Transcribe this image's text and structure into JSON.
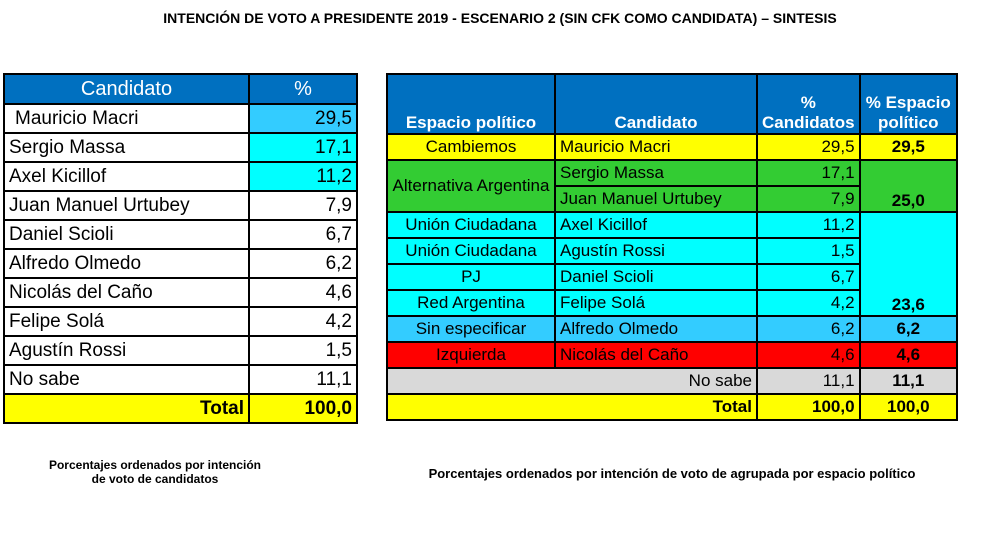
{
  "title": "INTENCIÓN DE VOTO A PRESIDENTE 2019 - ESCENARIO 2 (SIN CFK COMO CANDIDATA) – SINTESIS",
  "left": {
    "headers": [
      "Candidato",
      "%"
    ],
    "rows": [
      [
        "Mauricio Macri",
        "29,5"
      ],
      [
        "Sergio Massa",
        "17,1"
      ],
      [
        "Axel Kicillof",
        "11,2"
      ],
      [
        "Juan Manuel Urtubey",
        "7,9"
      ],
      [
        "Daniel Scioli",
        "6,7"
      ],
      [
        "Alfredo Olmedo",
        "6,2"
      ],
      [
        "Nicolás del Caño",
        "4,6"
      ],
      [
        "Felipe Solá",
        "4,2"
      ],
      [
        "Agustín Rossi",
        "1,5"
      ],
      [
        "No sabe",
        "11,1"
      ]
    ],
    "total": [
      "Total",
      "100,0"
    ],
    "note": "Porcentajes ordenados por intención de voto de candidatos"
  },
  "right": {
    "headers": [
      "Espacio político",
      "Candidato",
      "% Candidatos",
      "% Espacio político"
    ],
    "rows": [
      {
        "espacio": "Cambiemos",
        "candidato": "Mauricio Macri",
        "pct": "29,5",
        "espacio_pct": "29,5"
      },
      {
        "espacio": "Alternativa Argentina",
        "candidato": "Sergio Massa",
        "pct": "17,1",
        "espacio_pct": "25,0"
      },
      {
        "candidato": "Juan Manuel Urtubey",
        "pct": "7,9"
      },
      {
        "espacio": "Unión Ciudadana",
        "candidato": "Axel Kicillof",
        "pct": "11,2",
        "espacio_pct": "23,6"
      },
      {
        "espacio": "Unión Ciudadana",
        "candidato": "Agustín Rossi",
        "pct": "1,5"
      },
      {
        "espacio": "PJ",
        "candidato": "Daniel Scioli",
        "pct": "6,7"
      },
      {
        "espacio": "Red Argentina",
        "candidato": "Felipe Solá",
        "pct": "4,2"
      },
      {
        "espacio": "Sin especificar",
        "candidato": "Alfredo Olmedo",
        "pct": "6,2",
        "espacio_pct": "6,2"
      },
      {
        "espacio": "Izquierda",
        "candidato": "Nicolás del Caño",
        "pct": "4,6",
        "espacio_pct": "4,6"
      }
    ],
    "no_sabe": {
      "label": "No sabe",
      "pct": "11,1",
      "espacio_pct": "11,1"
    },
    "total": {
      "label": "Total",
      "pct": "100,0",
      "espacio_pct": "100,0"
    },
    "note": "Porcentajes ordenados por  intención de voto de agrupada por espacio político"
  },
  "colors": {
    "header": "#0070c0",
    "cambiemos": "#ffff00",
    "alternativa": "#33cc33",
    "union": "#00ffff",
    "sin_especificar": "#33ccff",
    "izquierda": "#ff0000",
    "no_sabe": "#d9d9d9"
  }
}
